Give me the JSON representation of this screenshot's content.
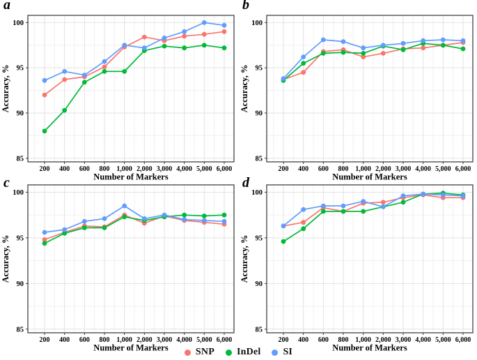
{
  "figure": {
    "background": "#ffffff",
    "axis_common": {
      "xlabel": "Number of Markers",
      "ylabel": "Accuracy, %"
    },
    "legend": {
      "position": "bottom-center",
      "items": [
        {
          "label": "SNP",
          "color": "#F8766D"
        },
        {
          "label": "InDel",
          "color": "#00BA38"
        },
        {
          "label": "SI",
          "color": "#619CFF"
        }
      ]
    }
  },
  "chart_data": [
    {
      "type": "line",
      "panel": "a",
      "title": "",
      "xlabel": "Number of Markers",
      "ylabel": "Accuracy, %",
      "categories": [
        200,
        400,
        600,
        800,
        1000,
        2000,
        3000,
        4000,
        5000,
        6000
      ],
      "x_tick_labels": [
        "200",
        "400",
        "600",
        "800",
        "1,000",
        "2,000",
        "3,000",
        "4,000",
        "5,000",
        "6,000"
      ],
      "y_ticks": [
        85,
        90,
        95,
        100
      ],
      "y_minor_ticks": [
        87.5,
        92.5,
        97.5
      ],
      "ylim": [
        84.6,
        100.8
      ],
      "grid": true,
      "series": [
        {
          "name": "SNP",
          "color": "#F8766D",
          "values": [
            92.0,
            93.7,
            94.0,
            95.1,
            97.3,
            98.4,
            98.0,
            98.5,
            98.7,
            99.0
          ]
        },
        {
          "name": "InDel",
          "color": "#00BA38",
          "values": [
            88.0,
            90.3,
            93.4,
            94.6,
            94.6,
            96.9,
            97.4,
            97.2,
            97.5,
            97.2
          ]
        },
        {
          "name": "SI",
          "color": "#619CFF",
          "values": [
            93.6,
            94.6,
            94.2,
            95.7,
            97.5,
            97.2,
            98.3,
            99.0,
            100.0,
            99.7
          ]
        }
      ]
    },
    {
      "type": "line",
      "panel": "b",
      "title": "",
      "xlabel": "Number of Markers",
      "ylabel": "Accuracy, %",
      "categories": [
        200,
        400,
        600,
        800,
        1000,
        2000,
        3000,
        4000,
        5000,
        6000
      ],
      "x_tick_labels": [
        "200",
        "400",
        "600",
        "800",
        "1,000",
        "2,000",
        "3,000",
        "4,000",
        "5,000",
        "6,000"
      ],
      "y_ticks": [
        85,
        90,
        95,
        100
      ],
      "y_minor_ticks": [
        87.5,
        92.5,
        97.5
      ],
      "ylim": [
        84.6,
        100.8
      ],
      "grid": true,
      "series": [
        {
          "name": "SNP",
          "color": "#F8766D",
          "values": [
            93.7,
            94.5,
            96.8,
            97.0,
            96.2,
            96.6,
            97.1,
            97.2,
            97.5,
            97.8
          ]
        },
        {
          "name": "InDel",
          "color": "#00BA38",
          "values": [
            93.6,
            95.5,
            96.6,
            96.7,
            96.6,
            97.4,
            97.0,
            97.7,
            97.5,
            97.1
          ]
        },
        {
          "name": "SI",
          "color": "#619CFF",
          "values": [
            93.8,
            96.2,
            98.1,
            97.9,
            97.2,
            97.5,
            97.7,
            98.0,
            98.1,
            98.0
          ]
        }
      ]
    },
    {
      "type": "line",
      "panel": "c",
      "title": "",
      "xlabel": "Number of Markers",
      "ylabel": "Accuracy, %",
      "categories": [
        200,
        400,
        600,
        800,
        1000,
        2000,
        3000,
        4000,
        5000,
        6000
      ],
      "x_tick_labels": [
        "200",
        "400",
        "600",
        "800",
        "1,000",
        "2,000",
        "3,000",
        "4,000",
        "5,000",
        "6,000"
      ],
      "y_ticks": [
        85,
        90,
        95,
        100
      ],
      "y_minor_ticks": [
        87.5,
        92.5,
        97.5
      ],
      "ylim": [
        84.6,
        100.8
      ],
      "grid": true,
      "series": [
        {
          "name": "SNP",
          "color": "#F8766D",
          "values": [
            94.8,
            95.6,
            96.3,
            96.2,
            97.5,
            96.6,
            97.4,
            96.9,
            96.7,
            96.5
          ]
        },
        {
          "name": "InDel",
          "color": "#00BA38",
          "values": [
            94.4,
            95.5,
            96.1,
            96.1,
            97.3,
            96.9,
            97.3,
            97.5,
            97.4,
            97.5
          ]
        },
        {
          "name": "SI",
          "color": "#619CFF",
          "values": [
            95.6,
            95.9,
            96.8,
            97.1,
            98.5,
            97.1,
            97.5,
            97.0,
            96.9,
            96.8
          ]
        }
      ]
    },
    {
      "type": "line",
      "panel": "d",
      "title": "",
      "xlabel": "Number of Markers",
      "ylabel": "Accuracy, %",
      "categories": [
        200,
        400,
        600,
        800,
        1000,
        2000,
        3000,
        4000,
        5000,
        6000
      ],
      "x_tick_labels": [
        "200",
        "400",
        "600",
        "800",
        "1,000",
        "2,000",
        "3,000",
        "4,000",
        "5,000",
        "6,000"
      ],
      "y_ticks": [
        85,
        90,
        95,
        100
      ],
      "y_minor_ticks": [
        87.5,
        92.5,
        97.5
      ],
      "ylim": [
        84.6,
        100.8
      ],
      "grid": true,
      "series": [
        {
          "name": "SNP",
          "color": "#F8766D",
          "values": [
            96.3,
            96.7,
            98.3,
            97.9,
            98.8,
            98.9,
            99.4,
            99.7,
            99.4,
            99.4
          ]
        },
        {
          "name": "InDel",
          "color": "#00BA38",
          "values": [
            94.6,
            96.0,
            97.9,
            97.9,
            97.9,
            98.4,
            98.9,
            99.8,
            99.9,
            99.7
          ]
        },
        {
          "name": "SI",
          "color": "#619CFF",
          "values": [
            96.3,
            98.1,
            98.5,
            98.5,
            99.0,
            98.4,
            99.6,
            99.8,
            99.7,
            99.6
          ]
        }
      ]
    }
  ]
}
